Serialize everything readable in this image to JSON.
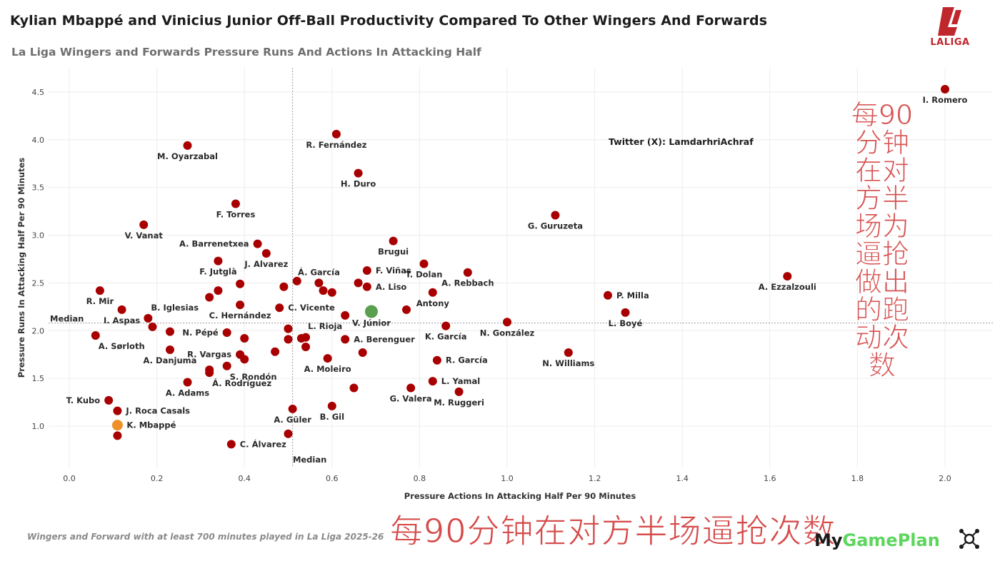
{
  "header": {
    "title": "Kylian Mbappé and Vinicius Junior Off-Ball Productivity Compared To Other Wingers And Forwards",
    "subtitle": "La Liga Wingers and Forwards Pressure Runs And Actions In Attacking Half",
    "logo_text": "LALIGA"
  },
  "footer": {
    "note": "Wingers and Forward with at least 700 minutes played in La Liga 2025-26",
    "brand_my": "My",
    "brand_rest": "GamePlan"
  },
  "credit": "Twitter (X): LamdarhriAchraf",
  "watermark": {
    "vertical_lines": [
      "每90",
      "分钟",
      "在对",
      "方半",
      "场为",
      "逼抢",
      "做出",
      "的跑",
      "动次",
      "数"
    ],
    "horizontal": "每90分钟在对方半场逼抢次数"
  },
  "colors": {
    "point": "#a80000",
    "highlight_vinicius": "#5a9e4f",
    "highlight_mbappe": "#f0902a",
    "logo": "#c0272d"
  },
  "chart_data": {
    "type": "scatter",
    "title": "Kylian Mbappé and Vinicius Junior Off-Ball Productivity Compared To Other Wingers And Forwards",
    "subtitle": "La Liga Wingers and Forwards Pressure Runs And Actions In Attacking Half",
    "xlabel": "Pressure Actions In Attacking Half Per 90 Minutes",
    "ylabel": "Pressure Runs In Attacking Half  Per 90 Minutes",
    "xlim": [
      -0.05,
      2.1
    ],
    "ylim": [
      0.55,
      4.65
    ],
    "xticks": [
      0.0,
      0.2,
      0.4,
      0.6,
      0.8,
      1.0,
      1.2,
      1.4,
      1.6,
      1.8,
      2.0
    ],
    "xtick_labels": [
      "0.0",
      "0.2",
      "0.4",
      "0.6",
      "0.8",
      "1.0",
      "1.2",
      "1.4",
      "1.6",
      "1.8",
      "2.0"
    ],
    "yticks": [
      1.0,
      1.5,
      2.0,
      2.5,
      3.0,
      3.5,
      4.0,
      4.5
    ],
    "ytick_labels": [
      "1.0",
      "1.5",
      "2.0",
      "2.5",
      "3.0",
      "3.5",
      "4.0",
      "4.5"
    ],
    "grid": true,
    "median_x": 0.51,
    "median_y": 2.08,
    "median_label": "Median",
    "points": [
      {
        "x": 2.0,
        "y": 4.53,
        "label": "I. Romero",
        "pos": "below"
      },
      {
        "x": 0.61,
        "y": 4.06,
        "label": "R. Fernández",
        "pos": "below"
      },
      {
        "x": 0.27,
        "y": 3.94,
        "label": "M. Oyarzabal",
        "pos": "below"
      },
      {
        "x": 0.66,
        "y": 3.65,
        "label": "H. Duro",
        "pos": "below"
      },
      {
        "x": 0.38,
        "y": 3.33,
        "label": "F. Torres",
        "pos": "below"
      },
      {
        "x": 1.11,
        "y": 3.21,
        "label": "G. Guruzeta",
        "pos": "below"
      },
      {
        "x": 0.17,
        "y": 3.11,
        "label": "V. Vanat",
        "pos": "below"
      },
      {
        "x": 0.74,
        "y": 2.94,
        "label": "Brugui",
        "pos": "below"
      },
      {
        "x": 0.43,
        "y": 2.91,
        "label": "A. Barrenetxea",
        "pos": "left"
      },
      {
        "x": 0.45,
        "y": 2.81,
        "label": "J. Alvarez",
        "pos": "below"
      },
      {
        "x": 0.34,
        "y": 2.73,
        "label": "F. Jutglà",
        "pos": "below"
      },
      {
        "x": 0.81,
        "y": 2.7,
        "label": "T. Dolan",
        "pos": "below"
      },
      {
        "x": 0.68,
        "y": 2.63,
        "label": "F. Viñas",
        "pos": "right"
      },
      {
        "x": 0.91,
        "y": 2.61,
        "label": "A. Rebbach",
        "pos": "below"
      },
      {
        "x": 1.64,
        "y": 2.57,
        "label": "A. Ezzalzouli",
        "pos": "below"
      },
      {
        "x": 0.52,
        "y": 2.52,
        "label": "",
        "pos": "none"
      },
      {
        "x": 0.57,
        "y": 2.5,
        "label": "Á. García",
        "pos": "above"
      },
      {
        "x": 0.66,
        "y": 2.5,
        "label": "",
        "pos": "none"
      },
      {
        "x": 0.39,
        "y": 2.49,
        "label": "",
        "pos": "none"
      },
      {
        "x": 0.49,
        "y": 2.46,
        "label": "",
        "pos": "none"
      },
      {
        "x": 0.68,
        "y": 2.46,
        "label": "A. Liso",
        "pos": "right"
      },
      {
        "x": 0.58,
        "y": 2.42,
        "label": "",
        "pos": "none"
      },
      {
        "x": 0.07,
        "y": 2.42,
        "label": "R. Mir",
        "pos": "below"
      },
      {
        "x": 0.34,
        "y": 2.42,
        "label": "",
        "pos": "none"
      },
      {
        "x": 0.6,
        "y": 2.4,
        "label": "",
        "pos": "none"
      },
      {
        "x": 0.83,
        "y": 2.4,
        "label": "Antony",
        "pos": "below"
      },
      {
        "x": 0.32,
        "y": 2.35,
        "label": "",
        "pos": "none"
      },
      {
        "x": 1.23,
        "y": 2.37,
        "label": "P. Milla",
        "pos": "right"
      },
      {
        "x": 0.39,
        "y": 2.27,
        "label": "C. Hernández",
        "pos": "below"
      },
      {
        "x": 0.48,
        "y": 2.24,
        "label": "C. Vicente",
        "pos": "right"
      },
      {
        "x": 0.12,
        "y": 2.22,
        "label": "I. Aspas",
        "pos": "below"
      },
      {
        "x": 0.77,
        "y": 2.22,
        "label": "",
        "pos": "none"
      },
      {
        "x": 1.27,
        "y": 2.19,
        "label": "L. Boyé",
        "pos": "below"
      },
      {
        "x": 0.63,
        "y": 2.16,
        "label": "L. Rioja",
        "pos": "below-left"
      },
      {
        "x": 0.18,
        "y": 2.13,
        "label": "B. Iglesias",
        "pos": "above-right"
      },
      {
        "x": 0.86,
        "y": 2.05,
        "label": "K. García",
        "pos": "below"
      },
      {
        "x": 1.0,
        "y": 2.09,
        "label": "N. González",
        "pos": "below"
      },
      {
        "x": 0.19,
        "y": 2.04,
        "label": "",
        "pos": "none"
      },
      {
        "x": 0.5,
        "y": 2.02,
        "label": "",
        "pos": "none"
      },
      {
        "x": 0.23,
        "y": 1.99,
        "label": "",
        "pos": "none"
      },
      {
        "x": 0.36,
        "y": 1.98,
        "label": "N. Pépé",
        "pos": "left"
      },
      {
        "x": 0.06,
        "y": 1.95,
        "label": "A. Sørloth",
        "pos": "below-right"
      },
      {
        "x": 0.54,
        "y": 1.93,
        "label": "",
        "pos": "none"
      },
      {
        "x": 0.53,
        "y": 1.92,
        "label": "",
        "pos": "none"
      },
      {
        "x": 0.4,
        "y": 1.92,
        "label": "",
        "pos": "none"
      },
      {
        "x": 0.5,
        "y": 1.91,
        "label": "",
        "pos": "none"
      },
      {
        "x": 0.63,
        "y": 1.91,
        "label": "A. Berenguer",
        "pos": "right"
      },
      {
        "x": 0.54,
        "y": 1.83,
        "label": "",
        "pos": "none"
      },
      {
        "x": 0.23,
        "y": 1.8,
        "label": "A. Danjuma",
        "pos": "below"
      },
      {
        "x": 0.47,
        "y": 1.78,
        "label": "",
        "pos": "none"
      },
      {
        "x": 0.67,
        "y": 1.77,
        "label": "",
        "pos": "none"
      },
      {
        "x": 1.14,
        "y": 1.77,
        "label": "N. Williams",
        "pos": "below"
      },
      {
        "x": 0.39,
        "y": 1.75,
        "label": "R. Vargas",
        "pos": "left"
      },
      {
        "x": 0.59,
        "y": 1.71,
        "label": "A. Moleiro",
        "pos": "below"
      },
      {
        "x": 0.4,
        "y": 1.7,
        "label": "",
        "pos": "none"
      },
      {
        "x": 0.84,
        "y": 1.69,
        "label": "R. García",
        "pos": "right"
      },
      {
        "x": 0.36,
        "y": 1.63,
        "label": "S. Rondón",
        "pos": "below-right"
      },
      {
        "x": 0.32,
        "y": 1.59,
        "label": "",
        "pos": "none"
      },
      {
        "x": 0.32,
        "y": 1.56,
        "label": "Á. Rodríguez",
        "pos": "below-right"
      },
      {
        "x": 0.27,
        "y": 1.46,
        "label": "A. Adams",
        "pos": "below"
      },
      {
        "x": 0.83,
        "y": 1.47,
        "label": "L. Yamal",
        "pos": "right"
      },
      {
        "x": 0.65,
        "y": 1.4,
        "label": "",
        "pos": "none"
      },
      {
        "x": 0.78,
        "y": 1.4,
        "label": "G. Valera",
        "pos": "below"
      },
      {
        "x": 0.89,
        "y": 1.36,
        "label": "M. Ruggeri",
        "pos": "below"
      },
      {
        "x": 0.09,
        "y": 1.27,
        "label": "T. Kubo",
        "pos": "left"
      },
      {
        "x": 0.6,
        "y": 1.21,
        "label": "B. Gil",
        "pos": "below"
      },
      {
        "x": 0.51,
        "y": 1.18,
        "label": "A. Güler",
        "pos": "below"
      },
      {
        "x": 0.11,
        "y": 1.16,
        "label": "J. Roca Casals",
        "pos": "right"
      },
      {
        "x": 0.11,
        "y": 0.9,
        "label": "",
        "pos": "none"
      },
      {
        "x": 0.5,
        "y": 0.92,
        "label": "",
        "pos": "none"
      },
      {
        "x": 0.37,
        "y": 0.81,
        "label": "C. Álvarez",
        "pos": "right"
      }
    ],
    "highlighted": [
      {
        "x": 0.69,
        "y": 2.2,
        "label": "V. Júnior",
        "pos": "below",
        "color": "#5a9e4f"
      },
      {
        "x": 0.11,
        "y": 1.01,
        "label": "K. Mbappé",
        "pos": "right",
        "color": "#f0902a"
      }
    ]
  }
}
